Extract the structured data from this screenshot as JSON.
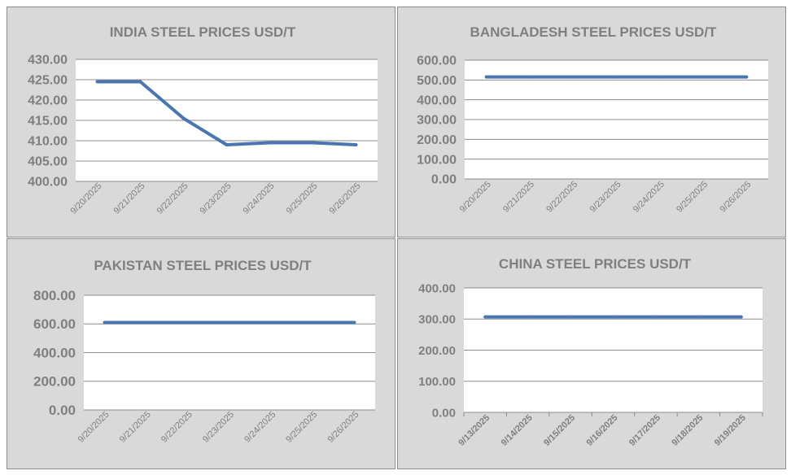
{
  "line_color": "#4a76b0",
  "plot_bg": "#ffffff",
  "panel_bg": "#d9d9d9",
  "text_color": "#7f7f7f",
  "chart_data": [
    {
      "type": "line",
      "title": "INDIA STEEL PRICES USD/T",
      "categories": [
        "9/20/2025",
        "9/21/2025",
        "9/22/2025",
        "9/23/2025",
        "9/24/2025",
        "9/25/2025",
        "9/26/2025"
      ],
      "values": [
        424.5,
        424.5,
        415.5,
        409.0,
        409.5,
        409.5,
        409.0
      ],
      "ylim": [
        400,
        430
      ],
      "yticks": [
        "400.00",
        "405.00",
        "410.00",
        "415.00",
        "420.00",
        "425.00",
        "430.00"
      ],
      "grid": true,
      "xlabel": "",
      "ylabel": ""
    },
    {
      "type": "line",
      "title": "BANGLADESH STEEL PRICES USD/T",
      "categories": [
        "9/20/2025",
        "9/21/2025",
        "9/22/2025",
        "9/23/2025",
        "9/24/2025",
        "9/25/2025",
        "9/26/2025"
      ],
      "values": [
        515,
        515,
        515,
        515,
        515,
        515,
        515
      ],
      "ylim": [
        0,
        600
      ],
      "yticks": [
        "0.00",
        "100.00",
        "200.00",
        "300.00",
        "400.00",
        "500.00",
        "600.00"
      ],
      "grid": true,
      "xlabel": "",
      "ylabel": ""
    },
    {
      "type": "line",
      "title": "PAKISTAN STEEL PRICES USD/T",
      "categories": [
        "9/20/2025",
        "9/21/2025",
        "9/22/2025",
        "9/23/2025",
        "9/24/2025",
        "9/25/2025",
        "9/26/2025"
      ],
      "values": [
        610,
        610,
        610,
        610,
        610,
        610,
        610
      ],
      "ylim": [
        0,
        800
      ],
      "yticks": [
        "0.00",
        "200.00",
        "400.00",
        "600.00",
        "800.00"
      ],
      "grid": true,
      "xlabel": "",
      "ylabel": ""
    },
    {
      "type": "line",
      "title": "CHINA STEEL PRICES USD/T",
      "categories": [
        "9/13/2025",
        "9/14/2025",
        "9/15/2025",
        "9/16/2025",
        "9/17/2025",
        "9/18/2025",
        "9/19/2025"
      ],
      "values": [
        307,
        307,
        307,
        307,
        307,
        307,
        307
      ],
      "ylim": [
        0,
        400
      ],
      "yticks": [
        "0.00",
        "100.00",
        "200.00",
        "300.00",
        "400.00"
      ],
      "grid": true,
      "xlabel": "",
      "ylabel": ""
    }
  ]
}
